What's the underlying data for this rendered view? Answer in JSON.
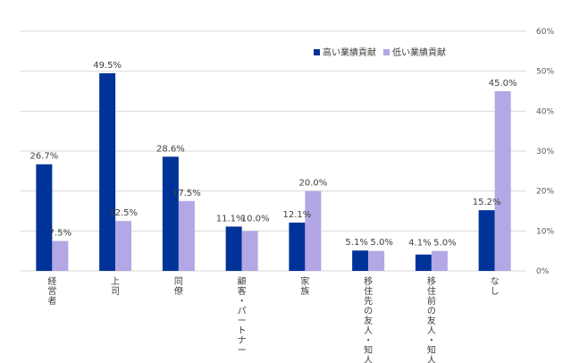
{
  "chart_data": {
    "type": "bar",
    "categories": [
      "経営者",
      "上司",
      "同僚",
      "顧客・パートナー",
      "家族",
      "移住先の友人・知人",
      "移住前の友人・知人",
      "なし"
    ],
    "series": [
      {
        "name": "高い業績貢献",
        "values": [
          26.7,
          49.5,
          28.6,
          11.1,
          12.1,
          5.1,
          4.1,
          15.2
        ],
        "labels": [
          "26.7%",
          "49.5%",
          "28.6%",
          "11.1%",
          "12.1%",
          "5.1%",
          "4.1%",
          "15.2%"
        ]
      },
      {
        "name": "低い業績貢献",
        "values": [
          7.5,
          12.5,
          17.5,
          10.0,
          20.0,
          5.0,
          5.0,
          45.0
        ],
        "labels": [
          "7.5%",
          "12.5%",
          "17.5%",
          "10.0%",
          "20.0%",
          "5.0%",
          "5.0%",
          "45.0%"
        ]
      }
    ],
    "y_ticks": [
      "0%",
      "10%",
      "20%",
      "30%",
      "40%",
      "50%",
      "60%"
    ],
    "ylim": [
      0,
      60
    ],
    "y_axis_side": "right",
    "grid": true,
    "legend_position": "top-right",
    "colors": [
      "#003399",
      "#b4a7e5"
    ],
    "grid_color": "#d9d9d9"
  }
}
